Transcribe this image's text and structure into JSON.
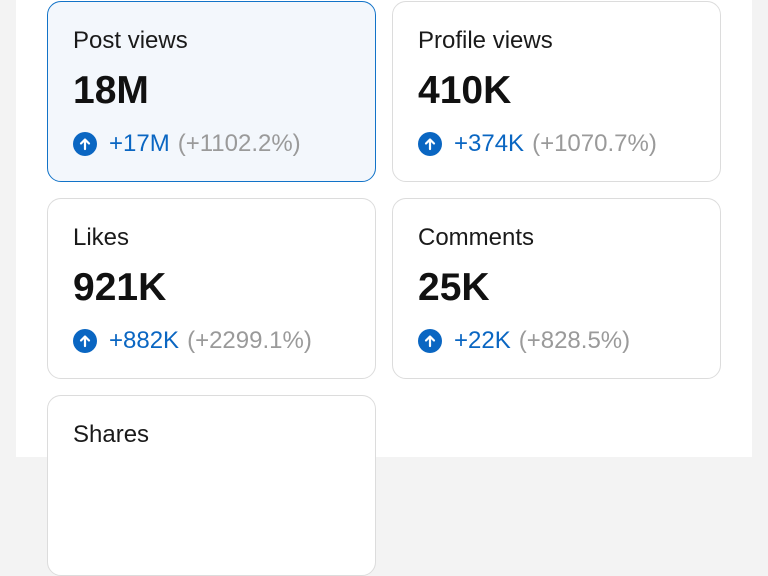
{
  "colors": {
    "accent": "#0a66c2",
    "selected_border": "#1273c8",
    "selected_bg": "#f3f7fc",
    "muted_text": "#9a9a9a",
    "card_border": "#dcdcdc"
  },
  "cards": [
    {
      "label": "Post views",
      "value": "18M",
      "change": "+17M",
      "change_pct": "(+1102.2%)",
      "icon": "arrow-up-circle-icon",
      "selected": true
    },
    {
      "label": "Profile views",
      "value": "410K",
      "change": "+374K",
      "change_pct": "(+1070.7%)",
      "icon": "arrow-up-circle-icon",
      "selected": false
    },
    {
      "label": "Likes",
      "value": "921K",
      "change": "+882K",
      "change_pct": "(+2299.1%)",
      "icon": "arrow-up-circle-icon",
      "selected": false
    },
    {
      "label": "Comments",
      "value": "25K",
      "change": "+22K",
      "change_pct": "(+828.5%)",
      "icon": "arrow-up-circle-icon",
      "selected": false
    },
    {
      "label": "Shares"
    }
  ]
}
